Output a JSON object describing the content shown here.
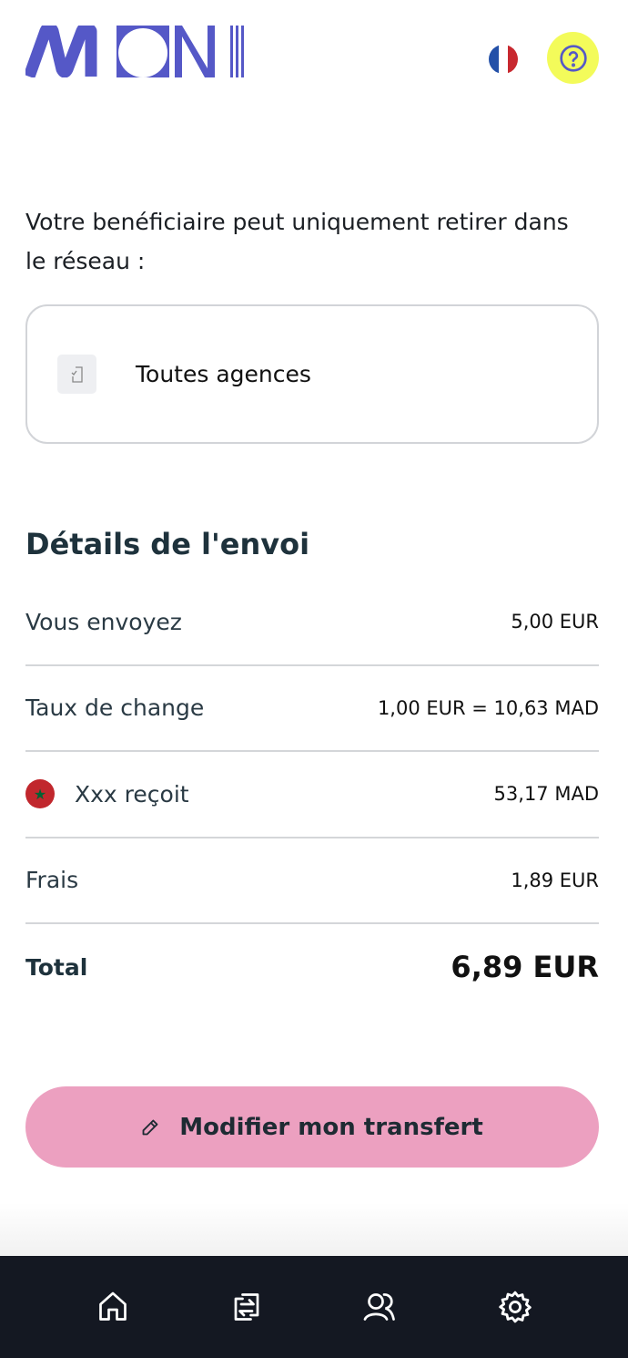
{
  "header": {
    "logo_text": "MONI",
    "language": "fr",
    "help_icon": "help-circle-icon"
  },
  "colors": {
    "brand": "#5558c7",
    "help_bg": "#f3fb5a",
    "button": "#eca0c0",
    "nav_bg": "#141822"
  },
  "network": {
    "intro": "Votre benéficiaire peut uniquement retirer dans le réseau :",
    "option": "Toutes agences"
  },
  "details": {
    "title": "Détails de l'envoi",
    "rows": [
      {
        "label": "Vous envoyez",
        "value": "5,00 EUR"
      },
      {
        "label": "Taux de change",
        "value": "1,00 EUR = 10,63 MAD"
      },
      {
        "label": "Xxx reçoit",
        "value": "53,17 MAD"
      },
      {
        "label": "Frais",
        "value": "1,89 EUR"
      }
    ],
    "total": {
      "label": "Total",
      "value": "6,89 EUR"
    }
  },
  "button": {
    "label": "Modifier mon transfert"
  },
  "nav": [
    "home-icon",
    "transfer-icon",
    "users-icon",
    "settings-icon"
  ]
}
